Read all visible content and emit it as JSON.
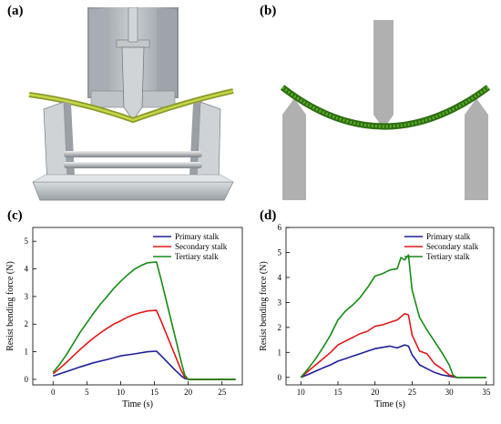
{
  "panels": {
    "a": "(a)",
    "b": "(b)",
    "c": "(c)",
    "d": "(d)"
  },
  "colors": {
    "primary": "#1f1f9a",
    "secondary": "#e01818",
    "tertiary": "#168a16",
    "stalk_green": "#3a8a1a",
    "fixture_gray": "#b0b0b0"
  },
  "chart_data": [
    {
      "type": "line",
      "panel": "c",
      "xlabel": "Time (s)",
      "ylabel": "Resist bending force (N)",
      "xlim": [
        -3,
        28
      ],
      "ylim": [
        -0.2,
        5.5
      ],
      "xticks": [
        0,
        5,
        10,
        15,
        20,
        25
      ],
      "yticks": [
        0,
        1,
        2,
        3,
        4,
        5
      ],
      "legend_position": "top-right",
      "grid": false,
      "series": [
        {
          "name": "Primary stalk",
          "color": "#1f1f9a",
          "x": [
            0,
            2,
            4,
            6,
            8,
            10,
            12,
            14,
            15.3,
            16,
            17,
            18,
            19,
            19.5,
            20,
            21,
            22,
            23,
            24,
            25,
            26,
            27
          ],
          "y": [
            0.12,
            0.28,
            0.45,
            0.6,
            0.72,
            0.85,
            0.92,
            1.0,
            1.02,
            0.85,
            0.6,
            0.35,
            0.12,
            0.03,
            0.0,
            0.0,
            0.0,
            0.0,
            0.0,
            0.0,
            0.0,
            0.0
          ]
        },
        {
          "name": "Secondary stalk",
          "color": "#e01818",
          "x": [
            0,
            1,
            2,
            3,
            4,
            5,
            6,
            7,
            8,
            9,
            10,
            11,
            12,
            13,
            14,
            15.3,
            16,
            17,
            18,
            19,
            19.5,
            20,
            21,
            22,
            23,
            24,
            25,
            26,
            27
          ],
          "y": [
            0.2,
            0.4,
            0.62,
            0.85,
            1.08,
            1.3,
            1.5,
            1.68,
            1.85,
            2.0,
            2.12,
            2.25,
            2.35,
            2.42,
            2.48,
            2.5,
            2.1,
            1.5,
            0.9,
            0.3,
            0.08,
            0.0,
            0.0,
            0.0,
            0.0,
            0.0,
            0.0,
            0.0,
            0.0
          ]
        },
        {
          "name": "Tertiary stalk",
          "color": "#168a16",
          "x": [
            0,
            1,
            2,
            3,
            4,
            5,
            6,
            7,
            8,
            9,
            10,
            11,
            12,
            13,
            14,
            15.3,
            16,
            17,
            18,
            19,
            19.5,
            20,
            21,
            22,
            23,
            24,
            25,
            26,
            27
          ],
          "y": [
            0.25,
            0.55,
            0.9,
            1.3,
            1.7,
            2.05,
            2.4,
            2.72,
            3.0,
            3.3,
            3.55,
            3.78,
            3.98,
            4.12,
            4.22,
            4.25,
            3.6,
            2.6,
            1.6,
            0.6,
            0.15,
            0.0,
            0.0,
            0.0,
            0.0,
            0.0,
            0.0,
            0.0,
            0.0
          ]
        }
      ]
    },
    {
      "type": "line",
      "panel": "d",
      "xlabel": "Time (s)",
      "ylabel": "Resist bending force (N)",
      "xlim": [
        8,
        36
      ],
      "ylim": [
        -0.3,
        6
      ],
      "xticks": [
        10,
        15,
        20,
        25,
        30,
        35
      ],
      "yticks": [
        0,
        1,
        2,
        3,
        4,
        5,
        6
      ],
      "legend_position": "top-right",
      "grid": false,
      "series": [
        {
          "name": "Primary stalk",
          "color": "#1f1f9a",
          "x": [
            10,
            11,
            12,
            13,
            14,
            15,
            16,
            17,
            18,
            19,
            20,
            21,
            22,
            23,
            24,
            24.5,
            25,
            26,
            27,
            28,
            29,
            30,
            31,
            32,
            33,
            34,
            35
          ],
          "y": [
            0.0,
            0.12,
            0.25,
            0.38,
            0.5,
            0.65,
            0.75,
            0.85,
            0.95,
            1.05,
            1.15,
            1.2,
            1.25,
            1.18,
            1.3,
            1.25,
            0.9,
            0.5,
            0.35,
            0.2,
            0.1,
            0.05,
            0.0,
            0.0,
            0.0,
            0.0,
            0.0
          ]
        },
        {
          "name": "Secondary stalk",
          "color": "#e01818",
          "x": [
            10,
            11,
            12,
            13,
            14,
            15,
            16,
            17,
            18,
            19,
            20,
            21,
            22,
            23,
            24,
            24.5,
            25,
            26,
            27,
            28,
            29,
            30,
            31,
            32,
            33,
            34,
            35
          ],
          "y": [
            0.0,
            0.25,
            0.5,
            0.75,
            1.0,
            1.3,
            1.45,
            1.6,
            1.75,
            1.85,
            2.05,
            2.1,
            2.2,
            2.3,
            2.55,
            2.5,
            1.7,
            1.05,
            0.95,
            0.55,
            0.35,
            0.1,
            0.0,
            0.0,
            0.0,
            0.0,
            0.0
          ]
        },
        {
          "name": "Tertiary stalk",
          "color": "#168a16",
          "x": [
            10,
            11,
            12,
            13,
            14,
            15,
            16,
            17,
            18,
            19,
            20,
            21,
            22,
            23,
            23.5,
            24,
            24.5,
            25,
            26,
            27,
            28,
            29,
            30,
            30.5,
            31,
            32,
            33,
            34,
            35
          ],
          "y": [
            0.0,
            0.35,
            0.75,
            1.2,
            1.7,
            2.3,
            2.65,
            2.9,
            3.2,
            3.6,
            4.05,
            4.15,
            4.3,
            4.35,
            4.8,
            4.7,
            4.9,
            3.5,
            2.4,
            1.9,
            1.45,
            1.0,
            0.5,
            0.1,
            0.0,
            0.0,
            0.0,
            0.0,
            0.0
          ]
        }
      ]
    }
  ]
}
